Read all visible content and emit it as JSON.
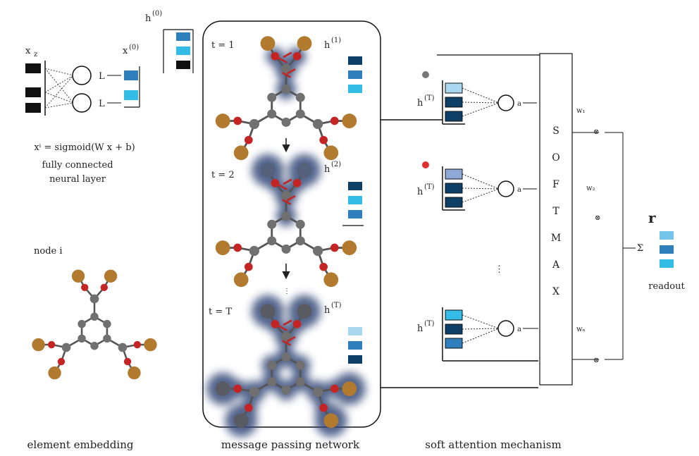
{
  "colors": {
    "dark": "#0e3f66",
    "mid": "#2e7fbc",
    "light": "#33bce6",
    "pale": "#a9d7ef",
    "copper": "#b27a2f",
    "carbon": "#707070",
    "oxygen": "#c52424",
    "hydrogen_dot": "#e03030",
    "glow": "#364a78",
    "black": "#111111"
  },
  "embedding": {
    "x_label": "x",
    "x_sub": "z",
    "out_label": "x",
    "out_sup": "(0)",
    "row1": "L",
    "row2": "L",
    "equation": "xⁱ = sigmoid(W x + b)",
    "caption_line1": "fully connected",
    "caption_line2": "neural layer",
    "node_label": "node i",
    "section_caption": "element embedding"
  },
  "message_passing": {
    "state_label": "h",
    "state_sup": "(0)",
    "t0": "t = 1",
    "t1": "t = 2",
    "tT": "t = T",
    "h1": "h",
    "h1_sup": "(1)",
    "h2": "h",
    "h2_sup": "(2)",
    "hT": "h",
    "hT_sup": "(T)",
    "dots": "⋮",
    "section_caption": "message passing network"
  },
  "attention": {
    "h_label": "h",
    "h_sup": "(T)",
    "a1": "a",
    "a2": "a",
    "aN": "a",
    "softmax_letters": [
      "S",
      "O",
      "F",
      "T",
      "M",
      "A",
      "X"
    ],
    "w1": "w₁",
    "w2": "w₂",
    "wN": "wₙ",
    "dots": "⋮",
    "section_caption": "soft attention mechanism"
  },
  "readout": {
    "r_label": "r",
    "sum_label": "Σ",
    "caption": "readout"
  }
}
